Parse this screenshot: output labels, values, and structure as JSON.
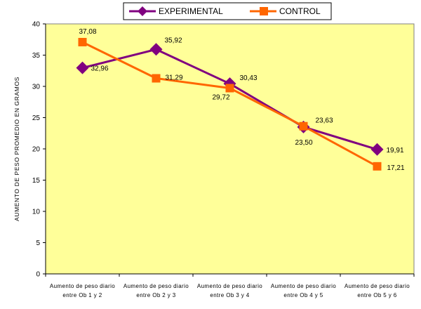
{
  "chart_data": {
    "type": "line",
    "title": "",
    "xlabel": "",
    "ylabel": "AUMENTO DE PESO PROMEDIO EN GRAMOS",
    "ylim": [
      0,
      40
    ],
    "yticks": [
      "0",
      "5",
      "10",
      "15",
      "20",
      "25",
      "30",
      "35",
      "40"
    ],
    "categories": [
      [
        "Aumento de peso diario",
        "entre Ob 1 y 2"
      ],
      [
        "Aumento de peso diario",
        "entre Ob 2 y 3"
      ],
      [
        "Aumento de peso diario",
        "entre Ob 3 y 4"
      ],
      [
        "Aumento de peso diario",
        "entre Ob 4 y 5"
      ],
      [
        "Aumento de peso diario",
        "entre Ob 5 y 6"
      ]
    ],
    "series": [
      {
        "name": "EXPERIMENTAL",
        "color": "#800080",
        "marker": "diamond",
        "values": [
          32.96,
          35.92,
          30.43,
          23.5,
          19.91
        ],
        "labels": [
          "32,96",
          "35,92",
          "30,43",
          "23,50",
          "19,91"
        ]
      },
      {
        "name": "CONTROL",
        "color": "#FF6600",
        "marker": "square",
        "values": [
          37.08,
          31.29,
          29.72,
          23.63,
          17.21
        ],
        "labels": [
          "37,08",
          "31,29",
          "29,72",
          "23,63",
          "17,21"
        ]
      }
    ],
    "legend_position": "top",
    "grid": false,
    "plot_background": "#FFFF99"
  }
}
